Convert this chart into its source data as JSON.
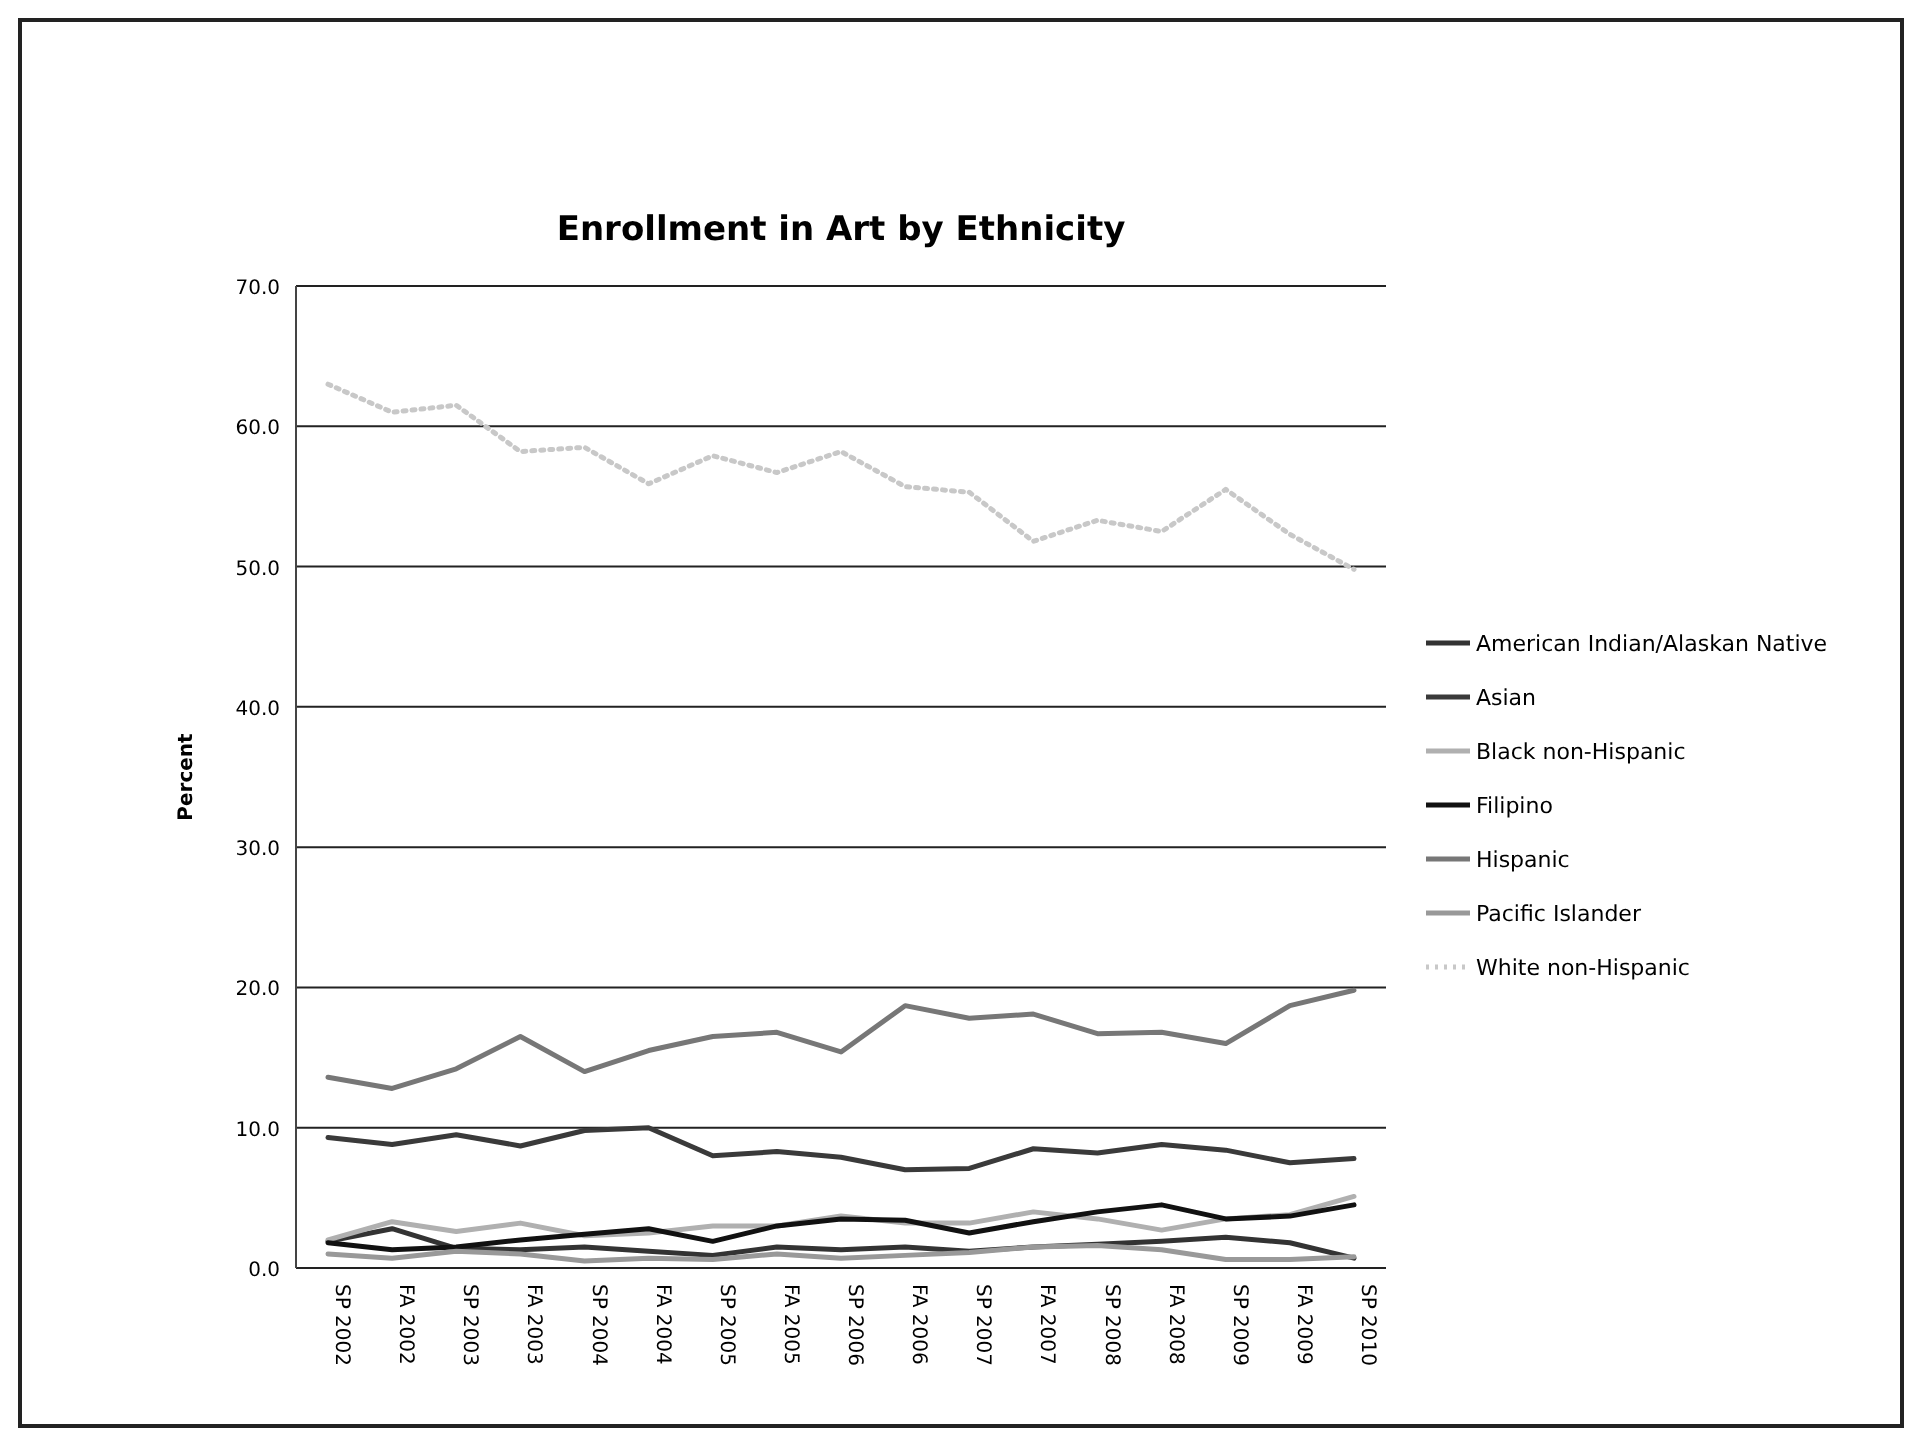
{
  "chart_data": {
    "type": "line",
    "title": "Enrollment in Art by Ethnicity",
    "ylabel": "Percent",
    "categories": [
      "SP 2002",
      "FA 2002",
      "SP 2003",
      "FA 2003",
      "SP 2004",
      "FA 2004",
      "SP 2005",
      "FA 2005",
      "SP 2006",
      "FA 2006",
      "SP 2007",
      "FA 2007",
      "SP 2008",
      "FA 2008",
      "SP 2009",
      "FA 2009",
      "SP 2010"
    ],
    "ylim": [
      0,
      70
    ],
    "yticks": [
      {
        "value": 0,
        "label": "0.0"
      },
      {
        "value": 10,
        "label": "10.0"
      },
      {
        "value": 20,
        "label": "20.0"
      },
      {
        "value": 30,
        "label": "30.0"
      },
      {
        "value": 40,
        "label": "40.0"
      },
      {
        "value": 50,
        "label": "50.0"
      },
      {
        "value": 60,
        "label": "60.0"
      },
      {
        "value": 70,
        "label": "70.0"
      }
    ],
    "grid": "y",
    "legend": "right",
    "marker": "none",
    "series": [
      {
        "name": "American Indian/Alaskan Native",
        "color": "#333333",
        "values": [
          1.9,
          2.8,
          1.4,
          1.3,
          1.5,
          1.2,
          0.9,
          1.5,
          1.3,
          1.5,
          1.2,
          1.5,
          1.7,
          1.9,
          2.2,
          1.8,
          0.7
        ]
      },
      {
        "name": "Asian",
        "color": "#3a3a3a",
        "values": [
          9.3,
          8.8,
          9.5,
          8.7,
          9.8,
          10.0,
          8.0,
          8.3,
          7.9,
          7.0,
          7.1,
          8.5,
          8.2,
          8.8,
          8.4,
          7.5,
          7.8
        ]
      },
      {
        "name": "Black non-Hispanic",
        "color": "#b0b0b0",
        "values": [
          2.0,
          3.3,
          2.6,
          3.2,
          2.3,
          2.5,
          3.0,
          3.0,
          3.7,
          3.2,
          3.2,
          4.0,
          3.5,
          2.7,
          3.5,
          3.8,
          5.1
        ]
      },
      {
        "name": "Filipino",
        "color": "#111111",
        "values": [
          1.8,
          1.3,
          1.5,
          2.0,
          2.4,
          2.8,
          1.9,
          3.0,
          3.5,
          3.4,
          2.5,
          3.3,
          4.0,
          4.5,
          3.5,
          3.7,
          4.5
        ]
      },
      {
        "name": "Hispanic",
        "color": "#777777",
        "values": [
          13.6,
          12.8,
          14.2,
          16.5,
          14.0,
          15.5,
          16.5,
          16.8,
          15.4,
          18.7,
          17.8,
          18.1,
          16.7,
          16.8,
          16.0,
          18.7,
          19.8
        ]
      },
      {
        "name": "Pacific Islander",
        "color": "#999999",
        "values": [
          1.0,
          0.7,
          1.2,
          1.0,
          0.5,
          0.7,
          0.6,
          1.0,
          0.7,
          0.9,
          1.1,
          1.5,
          1.6,
          1.3,
          0.6,
          0.6,
          0.8
        ]
      },
      {
        "name": "White non-Hispanic",
        "color": "#c8c8c8",
        "line_style": "dotted",
        "values": [
          63.0,
          61.0,
          61.5,
          58.2,
          58.5,
          55.9,
          57.9,
          56.7,
          58.2,
          55.7,
          55.3,
          51.8,
          53.3,
          52.5,
          55.5,
          52.3,
          49.8
        ]
      }
    ]
  }
}
